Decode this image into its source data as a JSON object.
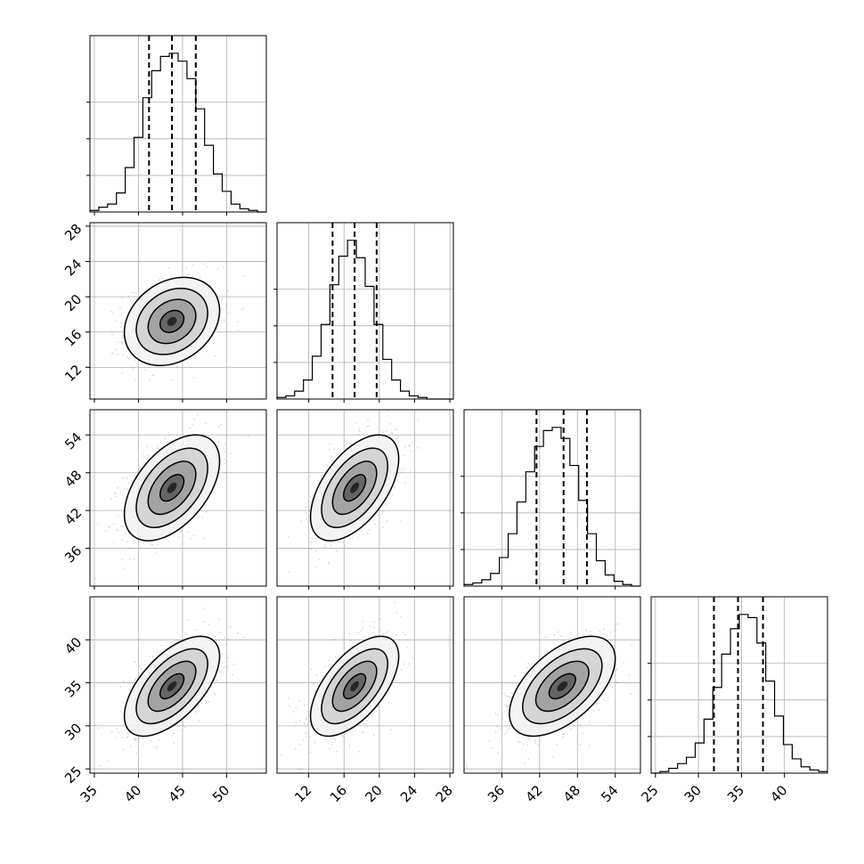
{
  "chart_data": {
    "type": "corner",
    "grid": true,
    "n_params": 4,
    "params": [
      {
        "ticks": [
          35,
          40,
          45,
          50
        ],
        "range": [
          34.5,
          54.5
        ],
        "quantiles": [
          41.2,
          43.8,
          46.5
        ]
      },
      {
        "ticks": [
          12,
          16,
          20,
          24,
          28
        ],
        "range": [
          8.4,
          28.4
        ],
        "quantiles": [
          14.7,
          17.2,
          19.7
        ]
      },
      {
        "ticks": [
          36,
          42,
          48,
          54
        ],
        "range": [
          30.0,
          58.0
        ],
        "quantiles": [
          41.5,
          45.8,
          49.5
        ]
      },
      {
        "ticks": [
          25,
          30,
          35,
          40
        ],
        "range": [
          24.5,
          45.0
        ],
        "quantiles": [
          31.8,
          34.6,
          37.5
        ]
      }
    ],
    "histograms": [
      [
        1,
        3,
        5,
        12,
        28,
        47,
        72,
        89,
        98,
        100,
        95,
        84,
        65,
        42,
        24,
        13,
        5,
        2,
        1,
        0
      ],
      [
        1,
        2,
        5,
        12,
        27,
        47,
        72,
        90,
        100,
        89,
        71,
        47,
        25,
        12,
        5,
        2,
        1,
        0,
        0,
        0
      ],
      [
        1,
        2,
        4,
        8,
        18,
        33,
        53,
        72,
        88,
        98,
        100,
        93,
        76,
        54,
        33,
        16,
        7,
        3,
        1,
        0
      ],
      [
        0,
        1,
        3,
        6,
        10,
        19,
        34,
        54,
        75,
        91,
        100,
        98,
        82,
        58,
        36,
        18,
        9,
        4,
        2,
        1
      ]
    ],
    "correlations": [
      [
        1,
        0.25,
        0.5,
        0.6
      ],
      [
        0.25,
        1,
        0.55,
        0.6
      ],
      [
        0.5,
        0.55,
        1,
        0.55
      ],
      [
        0.6,
        0.6,
        0.55,
        1
      ]
    ],
    "means": [
      43.8,
      17.2,
      45.6,
      34.6
    ],
    "sds": [
      2.7,
      2.5,
      4.2,
      2.9
    ]
  }
}
